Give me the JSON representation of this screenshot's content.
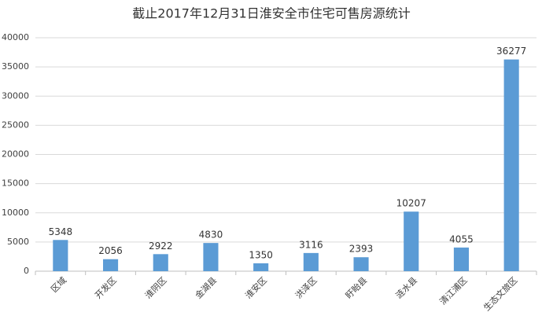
{
  "chart_data": {
    "type": "bar",
    "title": "截止2017年12月31日淮安全市住宅可售房源统计",
    "categories": [
      "区域",
      "开发区",
      "淮阴区",
      "金湖县",
      "淮安区",
      "洪泽区",
      "盱眙县",
      "涟水县",
      "清江浦区",
      "生态文旅区"
    ],
    "values": [
      5348,
      2056,
      2922,
      4830,
      1350,
      3116,
      2393,
      10207,
      4055,
      36277
    ],
    "color": "#5b9bd5",
    "ylim": [
      0,
      40000
    ],
    "yticks": [
      0,
      5000,
      10000,
      15000,
      20000,
      25000,
      30000,
      35000,
      40000
    ],
    "grid": true
  }
}
